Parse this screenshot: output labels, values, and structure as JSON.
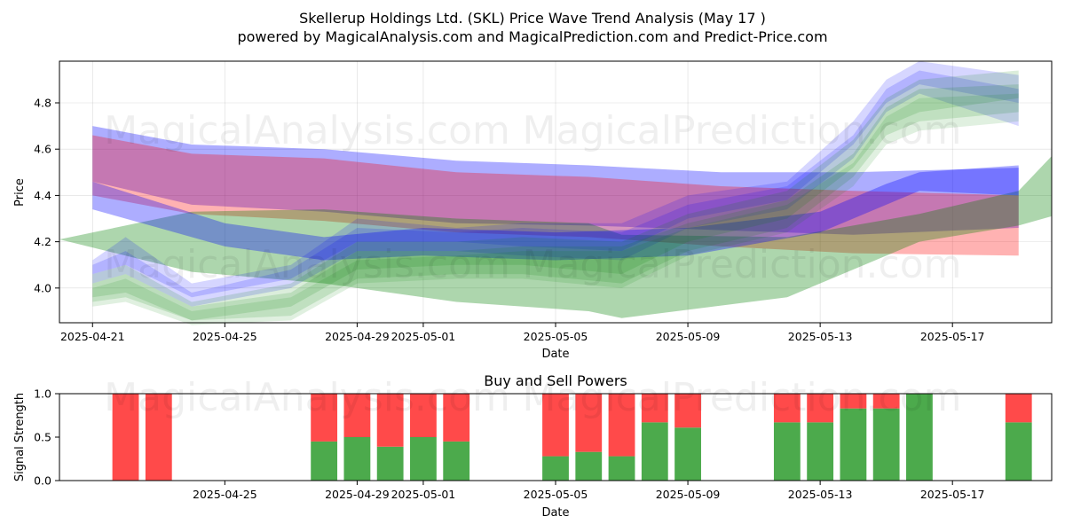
{
  "figure": {
    "title_line1": "Skellerup Holdings Ltd. (SKL) Price Wave Trend Analysis (May 17 )",
    "title_line2": "powered by MagicalAnalysis.com and MagicalPrediction.com and Predict-Price.com",
    "watermarks": [
      "MagicalAnalysis.com",
      "MagicalPrediction.com"
    ]
  },
  "chart_data": [
    {
      "type": "area",
      "title": "",
      "xlabel": "Date",
      "ylabel": "Price",
      "x_ticks": [
        "2025-04-21",
        "2025-04-25",
        "2025-04-29",
        "2025-05-01",
        "2025-05-05",
        "2025-05-09",
        "2025-05-13",
        "2025-05-17"
      ],
      "y_ticks": [
        4.0,
        4.2,
        4.4,
        4.6,
        4.8
      ],
      "xlim": [
        "2025-04-20",
        "2025-05-20"
      ],
      "ylim": [
        3.85,
        4.98
      ],
      "grid": true,
      "series": [
        {
          "color": "#0000ff",
          "opacity": 0.32,
          "x": [
            "2025-04-21",
            "2025-04-24",
            "2025-04-28",
            "2025-05-02",
            "2025-05-06",
            "2025-05-10",
            "2025-05-14",
            "2025-05-19"
          ],
          "upper": [
            4.7,
            4.62,
            4.6,
            4.55,
            4.53,
            4.5,
            4.5,
            4.52
          ],
          "lower": [
            4.46,
            4.36,
            4.33,
            4.28,
            4.27,
            4.25,
            4.23,
            4.26
          ]
        },
        {
          "color": "#ff0000",
          "opacity": 0.3,
          "x": [
            "2025-04-21",
            "2025-04-24",
            "2025-04-28",
            "2025-05-02",
            "2025-05-06",
            "2025-05-10",
            "2025-05-14",
            "2025-05-19"
          ],
          "upper": [
            4.66,
            4.58,
            4.56,
            4.5,
            4.48,
            4.44,
            4.42,
            4.4
          ],
          "lower": [
            4.4,
            4.32,
            4.29,
            4.24,
            4.22,
            4.18,
            4.15,
            4.14
          ]
        },
        {
          "color": "#008000",
          "opacity": 0.32,
          "x": [
            "2025-04-20",
            "2025-04-24",
            "2025-04-28",
            "2025-05-02",
            "2025-05-06",
            "2025-05-07",
            "2025-05-12",
            "2025-05-16",
            "2025-05-19",
            "2025-05-20"
          ],
          "upper": [
            4.21,
            4.33,
            4.34,
            4.3,
            4.28,
            4.23,
            4.22,
            4.32,
            4.42,
            4.57
          ],
          "lower": [
            4.21,
            4.07,
            4.02,
            3.94,
            3.9,
            3.87,
            3.96,
            4.2,
            4.27,
            4.31
          ]
        },
        {
          "color": "#0000ff",
          "opacity": 0.32,
          "x": [
            "2025-04-21",
            "2025-04-25",
            "2025-04-28",
            "2025-05-01",
            "2025-05-05",
            "2025-05-09",
            "2025-05-13",
            "2025-05-15",
            "2025-05-16",
            "2025-05-19"
          ],
          "upper": [
            4.46,
            4.28,
            4.22,
            4.26,
            4.24,
            4.26,
            4.33,
            4.45,
            4.5,
            4.53
          ],
          "lower": [
            4.34,
            4.18,
            4.12,
            4.14,
            4.12,
            4.14,
            4.24,
            4.36,
            4.42,
            4.4
          ]
        }
      ],
      "waves": [
        {
          "color": "#0000ff",
          "opacity": 0.16,
          "x": [
            "2025-04-21",
            "2025-04-22",
            "2025-04-24",
            "2025-04-27",
            "2025-04-29",
            "2025-05-02",
            "2025-05-04",
            "2025-05-07",
            "2025-05-09",
            "2025-05-12",
            "2025-05-14",
            "2025-05-15",
            "2025-05-16",
            "2025-05-19"
          ],
          "upper": [
            4.12,
            4.22,
            4.02,
            4.1,
            4.3,
            4.26,
            4.28,
            4.28,
            4.4,
            4.46,
            4.72,
            4.9,
            4.98,
            4.92
          ],
          "lower": [
            4.06,
            4.1,
            3.96,
            4.04,
            4.2,
            4.2,
            4.18,
            4.16,
            4.3,
            4.38,
            4.62,
            4.8,
            4.88,
            4.8
          ]
        },
        {
          "color": "#0000ff",
          "opacity": 0.16,
          "x": [
            "2025-04-21",
            "2025-04-22",
            "2025-04-24",
            "2025-04-27",
            "2025-04-29",
            "2025-05-02",
            "2025-05-04",
            "2025-05-07",
            "2025-05-09",
            "2025-05-12",
            "2025-05-14",
            "2025-05-15",
            "2025-05-16",
            "2025-05-19"
          ],
          "upper": [
            4.1,
            4.16,
            3.98,
            4.08,
            4.26,
            4.24,
            4.26,
            4.24,
            4.36,
            4.44,
            4.66,
            4.86,
            4.94,
            4.86
          ],
          "lower": [
            4.02,
            4.06,
            3.92,
            4.0,
            4.16,
            4.16,
            4.14,
            4.12,
            4.26,
            4.34,
            4.56,
            4.76,
            4.84,
            4.7
          ]
        },
        {
          "color": "#008000",
          "opacity": 0.14,
          "x": [
            "2025-04-21",
            "2025-04-22",
            "2025-04-24",
            "2025-04-27",
            "2025-04-29",
            "2025-05-02",
            "2025-05-04",
            "2025-05-07",
            "2025-05-09",
            "2025-05-12",
            "2025-05-14",
            "2025-05-15",
            "2025-05-16",
            "2025-05-19"
          ],
          "upper": [
            4.06,
            4.1,
            3.94,
            4.02,
            4.2,
            4.2,
            4.22,
            4.2,
            4.32,
            4.42,
            4.64,
            4.82,
            4.9,
            4.94
          ],
          "lower": [
            3.96,
            3.98,
            3.86,
            3.92,
            4.08,
            4.1,
            4.1,
            4.06,
            4.2,
            4.3,
            4.52,
            4.7,
            4.76,
            4.82
          ]
        },
        {
          "color": "#008000",
          "opacity": 0.14,
          "x": [
            "2025-04-21",
            "2025-04-22",
            "2025-04-24",
            "2025-04-27",
            "2025-04-29",
            "2025-05-02",
            "2025-05-04",
            "2025-05-07",
            "2025-05-09",
            "2025-05-12",
            "2025-05-14",
            "2025-05-15",
            "2025-05-16",
            "2025-05-19"
          ],
          "upper": [
            4.02,
            4.06,
            3.92,
            3.98,
            4.16,
            4.16,
            4.18,
            4.18,
            4.28,
            4.38,
            4.58,
            4.78,
            4.86,
            4.88
          ],
          "lower": [
            3.94,
            3.96,
            3.86,
            3.88,
            4.04,
            4.06,
            4.06,
            4.02,
            4.16,
            4.26,
            4.48,
            4.66,
            4.72,
            4.76
          ]
        },
        {
          "color": "#008000",
          "opacity": 0.12,
          "x": [
            "2025-04-21",
            "2025-04-22",
            "2025-04-24",
            "2025-04-27",
            "2025-04-29",
            "2025-05-02",
            "2025-05-04",
            "2025-05-07",
            "2025-05-09",
            "2025-05-12",
            "2025-05-14",
            "2025-05-15",
            "2025-05-16",
            "2025-05-19"
          ],
          "upper": [
            4.0,
            4.04,
            3.9,
            3.96,
            4.12,
            4.14,
            4.16,
            4.16,
            4.26,
            4.36,
            4.54,
            4.74,
            4.82,
            4.84
          ],
          "lower": [
            3.92,
            3.94,
            3.84,
            3.86,
            4.02,
            4.04,
            4.04,
            4.0,
            4.14,
            4.24,
            4.44,
            4.62,
            4.68,
            4.72
          ]
        }
      ]
    },
    {
      "type": "bar",
      "title": "Buy and Sell Powers",
      "xlabel": "Date",
      "ylabel": "Signal Strength",
      "x_ticks": [
        "2025-04-25",
        "2025-04-29",
        "2025-05-01",
        "2025-05-05",
        "2025-05-09",
        "2025-05-13",
        "2025-05-17"
      ],
      "y_ticks": [
        0.0,
        0.5,
        1.0
      ],
      "xlim": [
        "2025-04-20",
        "2025-05-20"
      ],
      "ylim": [
        0,
        1
      ],
      "buy_color": "#4caa4c",
      "sell_color": "#ff4a4a",
      "bars": [
        {
          "date": "2025-04-22",
          "buy": 0.0
        },
        {
          "date": "2025-04-23",
          "buy": 0.0
        },
        {
          "date": "2025-04-28",
          "buy": 0.45
        },
        {
          "date": "2025-04-29",
          "buy": 0.5
        },
        {
          "date": "2025-04-30",
          "buy": 0.39
        },
        {
          "date": "2025-05-01",
          "buy": 0.5
        },
        {
          "date": "2025-05-02",
          "buy": 0.45
        },
        {
          "date": "2025-05-05",
          "buy": 0.28
        },
        {
          "date": "2025-05-06",
          "buy": 0.33
        },
        {
          "date": "2025-05-07",
          "buy": 0.28
        },
        {
          "date": "2025-05-08",
          "buy": 0.67
        },
        {
          "date": "2025-05-09",
          "buy": 0.61
        },
        {
          "date": "2025-05-12",
          "buy": 0.67
        },
        {
          "date": "2025-05-13",
          "buy": 0.67
        },
        {
          "date": "2025-05-14",
          "buy": 0.83
        },
        {
          "date": "2025-05-15",
          "buy": 0.83
        },
        {
          "date": "2025-05-16",
          "buy": 1.0
        },
        {
          "date": "2025-05-19",
          "buy": 0.67
        }
      ]
    }
  ]
}
